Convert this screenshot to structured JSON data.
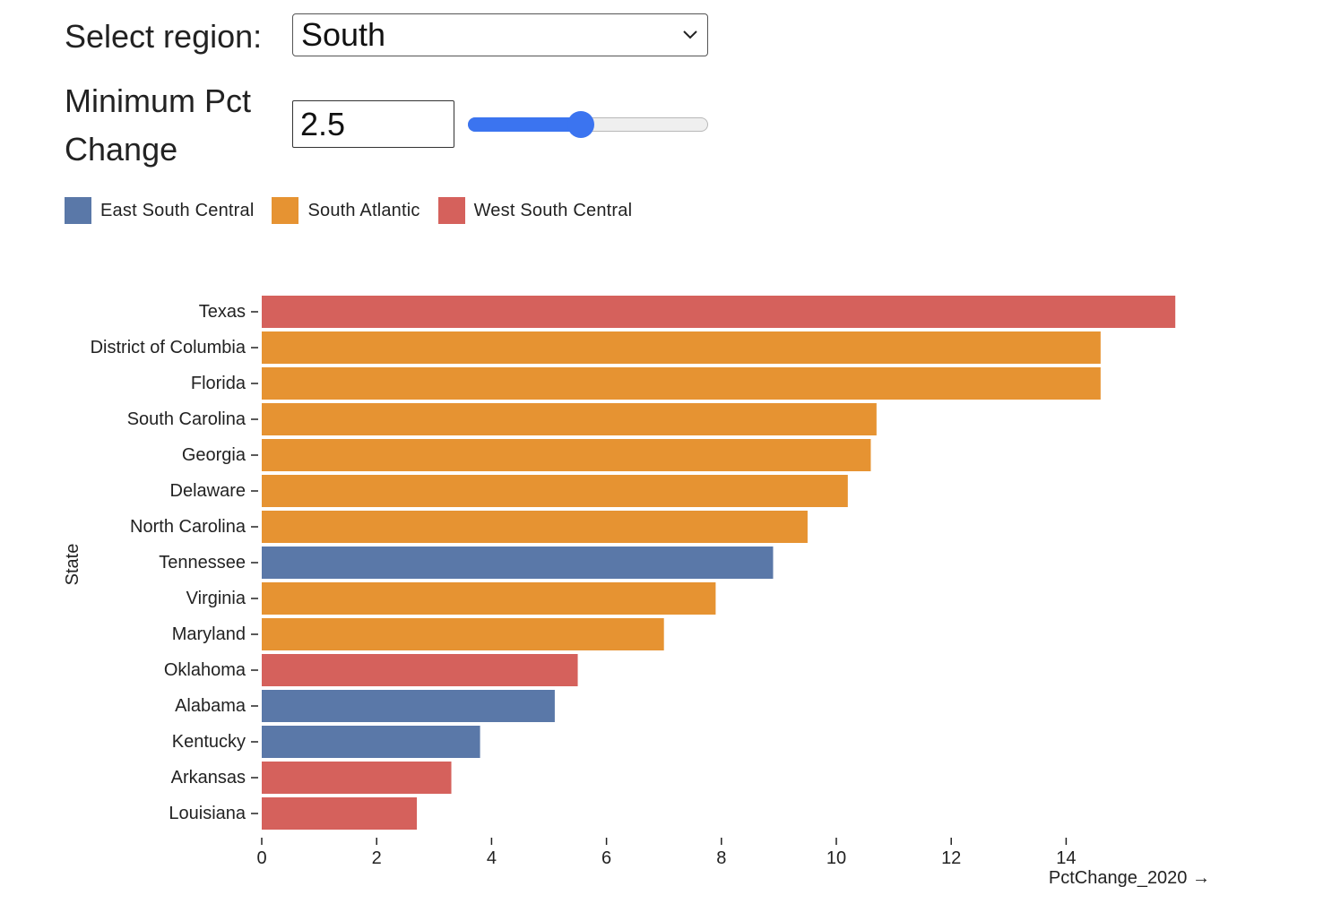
{
  "controls": {
    "region_label": "Select region:",
    "region_value": "South",
    "min_pct_label": "Minimum Pct Change",
    "min_pct_value": "2.5",
    "slider_value": 2.5,
    "slider_min": 0,
    "slider_max": 5.3,
    "accent_color": "#3b74f0",
    "chevron_icon": "chevron-down-icon"
  },
  "legend": [
    {
      "label": "East South Central",
      "color": "#5a78a8"
    },
    {
      "label": "South Atlantic",
      "color": "#e69332"
    },
    {
      "label": "West South Central",
      "color": "#d5615c"
    }
  ],
  "chart_data": {
    "type": "bar",
    "orientation": "horizontal",
    "xlabel": "PctChange_2020 →",
    "ylabel": "State",
    "xlim": [
      0,
      16
    ],
    "xticks": [
      0,
      2,
      4,
      6,
      8,
      10,
      12,
      14
    ],
    "bars": [
      {
        "state": "Texas",
        "value": 15.9,
        "division": "West South Central"
      },
      {
        "state": "District of Columbia",
        "value": 14.6,
        "division": "South Atlantic"
      },
      {
        "state": "Florida",
        "value": 14.6,
        "division": "South Atlantic"
      },
      {
        "state": "South Carolina",
        "value": 10.7,
        "division": "South Atlantic"
      },
      {
        "state": "Georgia",
        "value": 10.6,
        "division": "South Atlantic"
      },
      {
        "state": "Delaware",
        "value": 10.2,
        "division": "South Atlantic"
      },
      {
        "state": "North Carolina",
        "value": 9.5,
        "division": "South Atlantic"
      },
      {
        "state": "Tennessee",
        "value": 8.9,
        "division": "East South Central"
      },
      {
        "state": "Virginia",
        "value": 7.9,
        "division": "South Atlantic"
      },
      {
        "state": "Maryland",
        "value": 7.0,
        "division": "South Atlantic"
      },
      {
        "state": "Oklahoma",
        "value": 5.5,
        "division": "West South Central"
      },
      {
        "state": "Alabama",
        "value": 5.1,
        "division": "East South Central"
      },
      {
        "state": "Kentucky",
        "value": 3.8,
        "division": "East South Central"
      },
      {
        "state": "Arkansas",
        "value": 3.3,
        "division": "West South Central"
      },
      {
        "state": "Louisiana",
        "value": 2.7,
        "division": "West South Central"
      }
    ],
    "legend_position": "top-left"
  }
}
